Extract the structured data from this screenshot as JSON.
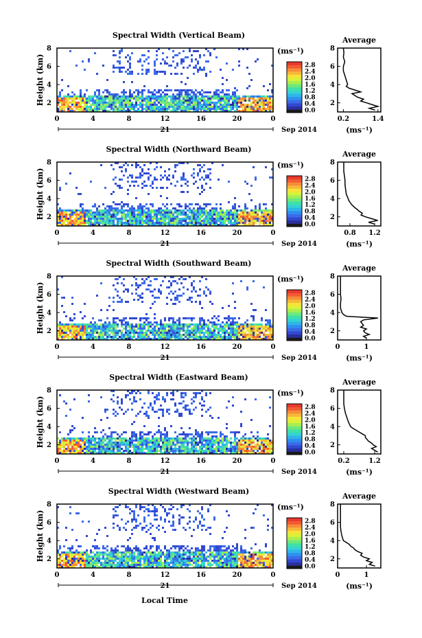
{
  "figure": {
    "y_axis_label": "Height (km)",
    "x_axis_label": "Local Time",
    "date_day": "21",
    "date_label": "Sep 2014",
    "unit_label": "(ms⁻¹)",
    "profile_title": "Average"
  },
  "colorbar": {
    "ticks": [
      "2.8",
      "2.4",
      "2.0",
      "1.6",
      "1.2",
      "0.8",
      "0.4",
      "0.0"
    ],
    "colors": [
      "#1a1a1a",
      "#2a2f9e",
      "#3249d0",
      "#3b6be8",
      "#2f8ff0",
      "#2fb5e8",
      "#36d3d0",
      "#3fe0a8",
      "#6ee87a",
      "#a6ee52",
      "#d8f23a",
      "#f7e23a",
      "#f7b83a",
      "#f78c3a",
      "#f25c32",
      "#e83a2e"
    ]
  },
  "chart_data": [
    {
      "type": "heatmap",
      "title": "Spectral Width (Vertical Beam)",
      "xlabel": "",
      "ylabel": "Height (km)",
      "xlim": [
        0,
        24
      ],
      "ylim": [
        1,
        8
      ],
      "x_ticks": [
        "0",
        "4",
        "8",
        "12",
        "16",
        "20",
        "0"
      ],
      "y_ticks": [
        "2",
        "4",
        "6",
        "8"
      ],
      "colorbar_range": [
        0.0,
        2.8
      ],
      "colorbar_unit": "(ms⁻¹)",
      "profile": {
        "title": "Average",
        "xlabel": "(ms⁻¹)",
        "x_ticks": [
          "0.2",
          "1.4"
        ],
        "xlim": [
          0.0,
          1.5
        ],
        "heights": [
          1.2,
          1.4,
          1.6,
          1.8,
          2.0,
          2.2,
          2.4,
          2.6,
          2.8,
          3.0,
          3.2,
          3.4,
          3.6,
          3.8,
          4.0,
          4.5,
          5.0,
          5.5,
          6.0,
          6.5,
          7.0,
          7.5,
          8.0
        ],
        "values": [
          1.3,
          1.1,
          1.4,
          1.2,
          1.0,
          0.8,
          0.9,
          0.7,
          0.6,
          0.5,
          0.8,
          0.6,
          0.4,
          0.3,
          0.35,
          0.3,
          0.25,
          0.2,
          0.2,
          0.25,
          0.2,
          0.22,
          0.2
        ]
      }
    },
    {
      "type": "heatmap",
      "title": "Spectral Width (Northward Beam)",
      "xlabel": "",
      "ylabel": "Height (km)",
      "xlim": [
        0,
        24
      ],
      "ylim": [
        1,
        8
      ],
      "x_ticks": [
        "0",
        "4",
        "8",
        "12",
        "16",
        "20",
        "0"
      ],
      "y_ticks": [
        "2",
        "4",
        "6",
        "8"
      ],
      "colorbar_range": [
        0.0,
        2.8
      ],
      "colorbar_unit": "(ms⁻¹)",
      "profile": {
        "title": "Average",
        "xlabel": "(ms⁻¹)",
        "x_ticks": [
          "0.8",
          "1.2"
        ],
        "xlim": [
          0.6,
          1.3
        ],
        "heights": [
          1.2,
          1.4,
          1.6,
          1.8,
          2.0,
          2.2,
          2.4,
          2.6,
          2.8,
          3.0,
          3.2,
          3.4,
          3.6,
          3.8,
          4.0,
          4.5,
          5.0,
          5.5,
          6.0,
          6.5,
          7.0,
          7.5,
          8.0
        ],
        "values": [
          1.2,
          1.1,
          1.25,
          1.15,
          1.05,
          0.98,
          1.0,
          0.95,
          0.92,
          0.88,
          0.85,
          0.82,
          0.8,
          0.78,
          0.77,
          0.74,
          0.73,
          0.72,
          0.72,
          0.71,
          0.7,
          0.7,
          0.7
        ]
      }
    },
    {
      "type": "heatmap",
      "title": "Spectral Width (Southward Beam)",
      "xlabel": "",
      "ylabel": "Height (km)",
      "xlim": [
        0,
        24
      ],
      "ylim": [
        1,
        8
      ],
      "x_ticks": [
        "0",
        "4",
        "8",
        "12",
        "16",
        "20",
        "0"
      ],
      "y_ticks": [
        "2",
        "4",
        "6",
        "8"
      ],
      "colorbar_range": [
        0.0,
        2.8
      ],
      "colorbar_unit": "(ms⁻¹)",
      "profile": {
        "title": "Average",
        "xlabel": "(ms⁻¹)",
        "x_ticks": [
          "0",
          "1"
        ],
        "xlim": [
          0.0,
          1.5
        ],
        "heights": [
          1.2,
          1.4,
          1.6,
          1.8,
          2.0,
          2.2,
          2.4,
          2.6,
          2.8,
          3.0,
          3.2,
          3.4,
          3.6,
          3.8,
          4.0,
          4.5,
          5.0,
          5.5,
          6.0,
          6.5,
          7.0,
          7.5,
          8.0
        ],
        "values": [
          1.0,
          0.9,
          1.1,
          0.95,
          0.9,
          1.0,
          0.8,
          0.9,
          0.85,
          0.8,
          0.9,
          1.4,
          0.3,
          0.2,
          0.15,
          0.1,
          0.1,
          0.12,
          0.1,
          0.1,
          0.1,
          0.1,
          0.1
        ]
      }
    },
    {
      "type": "heatmap",
      "title": "Spectral Width (Eastward Beam)",
      "xlabel": "",
      "ylabel": "Height (km)",
      "xlim": [
        0,
        24
      ],
      "ylim": [
        1,
        8
      ],
      "x_ticks": [
        "0",
        "4",
        "8",
        "12",
        "16",
        "20",
        "0"
      ],
      "y_ticks": [
        "2",
        "4",
        "6",
        "8"
      ],
      "colorbar_range": [
        0.0,
        2.8
      ],
      "colorbar_unit": "(ms⁻¹)",
      "profile": {
        "title": "Average",
        "xlabel": "(ms⁻¹)",
        "x_ticks": [
          "0.2",
          "1.2"
        ],
        "xlim": [
          0.0,
          1.4
        ],
        "heights": [
          1.2,
          1.4,
          1.6,
          1.8,
          2.0,
          2.2,
          2.4,
          2.6,
          2.8,
          3.0,
          3.2,
          3.4,
          3.6,
          3.8,
          4.0,
          4.5,
          5.0,
          5.5,
          6.0,
          6.5,
          7.0,
          7.5,
          8.0
        ],
        "values": [
          1.3,
          1.2,
          1.1,
          1.25,
          1.15,
          1.1,
          1.0,
          0.95,
          0.9,
          0.9,
          0.8,
          0.7,
          0.6,
          0.5,
          0.42,
          0.35,
          0.3,
          0.25,
          0.22,
          0.2,
          0.2,
          0.2,
          0.2
        ]
      }
    },
    {
      "type": "heatmap",
      "title": "Spectral Width (Westward Beam)",
      "xlabel": "Local Time",
      "ylabel": "Height (km)",
      "xlim": [
        0,
        24
      ],
      "ylim": [
        1,
        8
      ],
      "x_ticks": [
        "0",
        "4",
        "8",
        "12",
        "16",
        "20",
        "0"
      ],
      "y_ticks": [
        "2",
        "4",
        "6",
        "8"
      ],
      "colorbar_range": [
        0.0,
        2.8
      ],
      "colorbar_unit": "(ms⁻¹)",
      "profile": {
        "title": "Average",
        "xlabel": "(ms⁻¹)",
        "x_ticks": [
          "0",
          "1"
        ],
        "xlim": [
          0.0,
          1.5
        ],
        "heights": [
          1.2,
          1.4,
          1.6,
          1.8,
          2.0,
          2.2,
          2.4,
          2.6,
          2.8,
          3.0,
          3.2,
          3.4,
          3.6,
          3.8,
          4.0,
          4.5,
          5.0,
          5.5,
          6.0,
          6.5,
          7.0,
          7.5,
          8.0
        ],
        "values": [
          1.3,
          1.1,
          1.2,
          1.0,
          1.1,
          0.9,
          0.8,
          0.85,
          0.7,
          0.6,
          0.55,
          0.45,
          0.4,
          0.3,
          0.2,
          0.15,
          0.12,
          0.1,
          0.1,
          0.1,
          0.1,
          0.1,
          0.1
        ]
      }
    }
  ]
}
